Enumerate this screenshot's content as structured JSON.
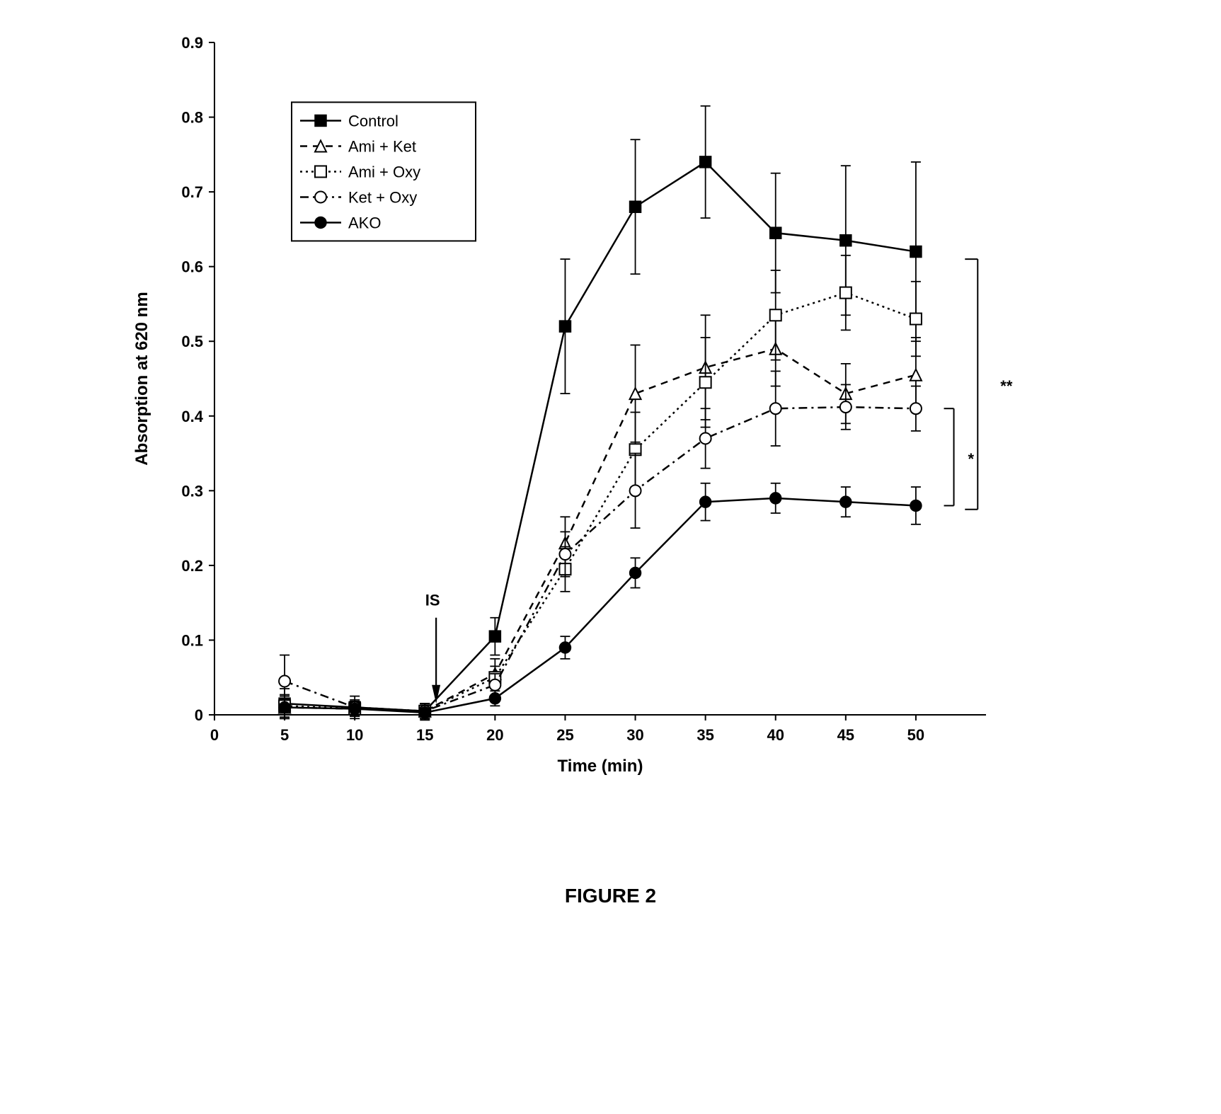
{
  "chart": {
    "type": "line",
    "xlabel": "Time (min)",
    "ylabel": "Absorption at 620 nm",
    "xlim": [
      0,
      55
    ],
    "ylim": [
      0,
      0.9
    ],
    "xtick_step": 5,
    "ytick_step": 0.1,
    "xtick_labels": [
      "0",
      "5",
      "10",
      "15",
      "20",
      "25",
      "30",
      "35",
      "40",
      "45",
      "50"
    ],
    "ytick_labels": [
      "0",
      "0.1",
      "0.2",
      "0.3",
      "0.4",
      "0.5",
      "0.6",
      "0.7",
      "0.8",
      "0.9"
    ],
    "background_color": "#ffffff",
    "axis_color": "#000000",
    "line_width": 2.5,
    "label_fontsize": 24,
    "tick_fontsize": 22,
    "annotation_IS": "IS",
    "annotation_star": "*",
    "annotation_double_star": "**",
    "figure_caption": "FIGURE 2",
    "series": [
      {
        "name": "Control",
        "label": "Control",
        "marker": "filled-square",
        "marker_color": "#000000",
        "line_style": "solid",
        "line_color": "#000000",
        "x": [
          5,
          10,
          15,
          20,
          25,
          30,
          35,
          40,
          45,
          50
        ],
        "y": [
          0.015,
          0.01,
          0.005,
          0.105,
          0.52,
          0.68,
          0.74,
          0.645,
          0.635,
          0.62
        ],
        "err": [
          0.02,
          0.015,
          0.01,
          0.025,
          0.09,
          0.09,
          0.075,
          0.08,
          0.1,
          0.12
        ]
      },
      {
        "name": "Ami + Ket",
        "label": "Ami + Ket",
        "marker": "open-triangle",
        "marker_color": "#000000",
        "line_style": "dashed",
        "line_color": "#000000",
        "x": [
          5,
          10,
          15,
          20,
          25,
          30,
          35,
          40,
          45,
          50
        ],
        "y": [
          0.01,
          0.008,
          0.005,
          0.055,
          0.23,
          0.43,
          0.465,
          0.49,
          0.43,
          0.455
        ],
        "err": [
          0.015,
          0.01,
          0.01,
          0.02,
          0.035,
          0.065,
          0.07,
          0.05,
          0.04,
          0.05
        ]
      },
      {
        "name": "Ami + Oxy",
        "label": "Ami + Oxy",
        "marker": "open-square",
        "marker_color": "#000000",
        "line_style": "dotted",
        "line_color": "#000000",
        "x": [
          5,
          10,
          15,
          20,
          25,
          30,
          35,
          40,
          45,
          50
        ],
        "y": [
          0.012,
          0.008,
          0.005,
          0.05,
          0.195,
          0.355,
          0.445,
          0.535,
          0.565,
          0.53
        ],
        "err": [
          0.015,
          0.01,
          0.01,
          0.015,
          0.03,
          0.05,
          0.06,
          0.06,
          0.05,
          0.05
        ]
      },
      {
        "name": "Ket + Oxy",
        "label": "Ket + Oxy",
        "marker": "open-circle",
        "marker_color": "#000000",
        "line_style": "dash-dot",
        "line_color": "#000000",
        "x": [
          5,
          10,
          15,
          20,
          25,
          30,
          35,
          40,
          45,
          50
        ],
        "y": [
          0.045,
          0.01,
          0.005,
          0.04,
          0.215,
          0.3,
          0.37,
          0.41,
          0.412,
          0.41
        ],
        "err": [
          0.035,
          0.01,
          0.01,
          0.015,
          0.03,
          0.05,
          0.04,
          0.05,
          0.03,
          0.03
        ]
      },
      {
        "name": "AKO",
        "label": "AKO",
        "marker": "filled-circle",
        "marker_color": "#000000",
        "line_style": "solid",
        "line_color": "#000000",
        "x": [
          5,
          10,
          15,
          20,
          25,
          30,
          35,
          40,
          45,
          50
        ],
        "y": [
          0.01,
          0.008,
          0.003,
          0.022,
          0.09,
          0.19,
          0.285,
          0.29,
          0.285,
          0.28
        ],
        "err": [
          0.01,
          0.01,
          0.01,
          0.01,
          0.015,
          0.02,
          0.025,
          0.02,
          0.02,
          0.025
        ]
      }
    ]
  }
}
